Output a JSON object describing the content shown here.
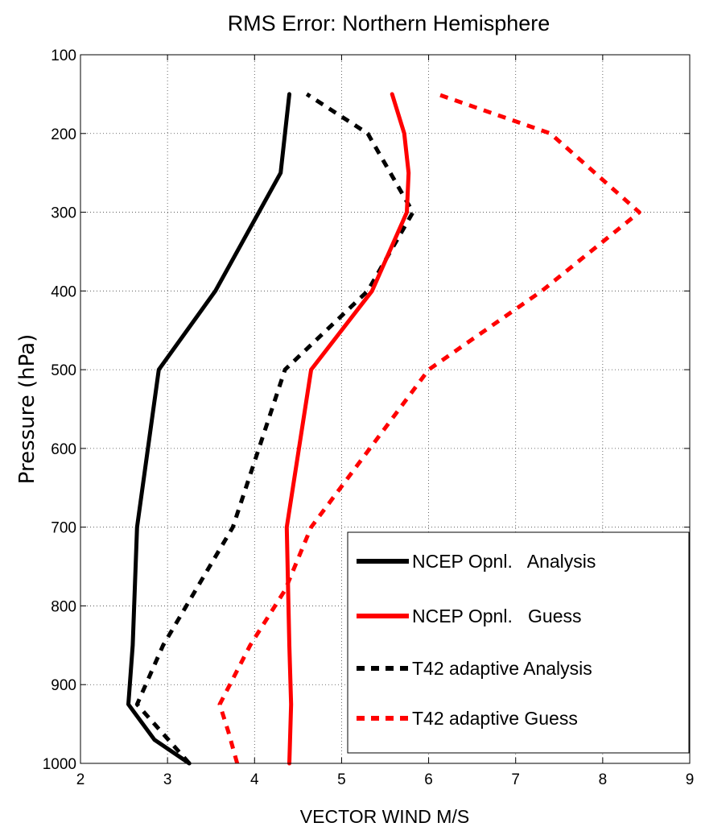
{
  "chart_data": {
    "type": "line",
    "title": "RMS Error: Northern Hemisphere",
    "xlabel": "VECTOR WIND M/S",
    "ylabel": "Pressure (hPa)",
    "xlim": [
      2,
      9
    ],
    "ylim": [
      1000,
      100
    ],
    "y_reversed": true,
    "grid": true,
    "x_ticks": [
      "2",
      "3",
      "4",
      "5",
      "6",
      "7",
      "8",
      "9"
    ],
    "y_ticks": [
      "100",
      "200",
      "300",
      "400",
      "500",
      "600",
      "700",
      "800",
      "900",
      "1000"
    ],
    "legend_position": "bottom-right",
    "series": [
      {
        "name": "NCEP Opnl.   Analysis",
        "color": "#000000",
        "style": "solid",
        "x": [
          3.25,
          2.85,
          2.55,
          2.6,
          2.65,
          2.9,
          3.55,
          4.3,
          4.35,
          4.4
        ],
        "y": [
          1000,
          970,
          925,
          850,
          700,
          500,
          400,
          250,
          200,
          150
        ]
      },
      {
        "name": "NCEP Opnl.   Guess",
        "color": "#ff0000",
        "style": "solid",
        "x": [
          4.4,
          4.42,
          4.4,
          4.37,
          4.65,
          5.35,
          5.75,
          5.77,
          5.72,
          5.58
        ],
        "y": [
          1000,
          925,
          850,
          700,
          500,
          400,
          300,
          250,
          200,
          150
        ]
      },
      {
        "name": "T42 adaptive Analysis",
        "color": "#000000",
        "style": "dashed",
        "x": [
          3.25,
          2.65,
          2.95,
          3.75,
          4.35,
          5.3,
          5.82,
          5.3,
          4.6
        ],
        "y": [
          1000,
          925,
          850,
          700,
          500,
          400,
          300,
          200,
          150
        ]
      },
      {
        "name": "T42 adaptive Guess",
        "color": "#ff0000",
        "style": "dashed",
        "x": [
          3.8,
          3.7,
          3.6,
          3.95,
          4.35,
          4.65,
          6.0,
          7.3,
          8.42,
          7.4,
          6.1
        ],
        "y": [
          1000,
          960,
          925,
          850,
          780,
          700,
          500,
          400,
          300,
          200,
          150
        ]
      }
    ]
  }
}
